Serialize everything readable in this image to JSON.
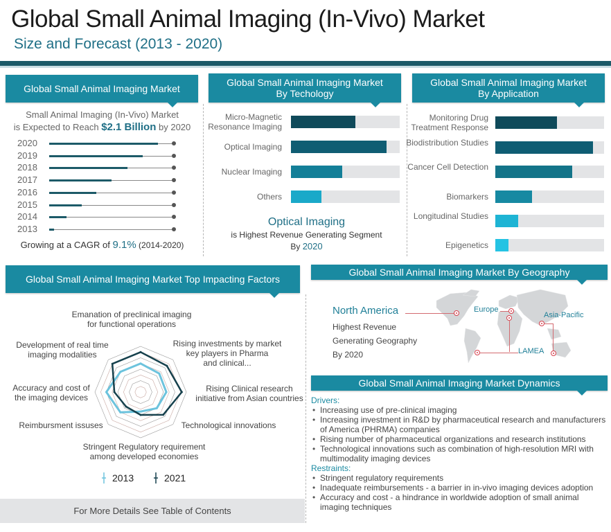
{
  "header": {
    "title": "Global Small Animal Imaging (In-Vivo) Market",
    "subtitle": "Size and Forecast (2013 - 2020)"
  },
  "market_panel": {
    "title": "Global Small Animal Imaging Market",
    "line1": "Small Animal Imaging (In-Vivo) Market",
    "line2_prefix": "is Expected to Reach ",
    "line2_value": "$2.1 Billion",
    "line2_suffix": " by 2020",
    "cagr_prefix": "Growing at a CAGR of ",
    "cagr_value": "9.1%",
    "cagr_period": " (2014-2020)"
  },
  "technology_panel": {
    "title_line1": "Global Small Animal Imaging Market",
    "title_line2": "By Techology",
    "highlight": "Optical Imaging",
    "note_line1": "is Highest Revenue Generating Segment",
    "note_prefix": "By ",
    "note_year": "2020"
  },
  "application_panel": {
    "title_line1": "Global Small Animal Imaging Market",
    "title_line2": "By Application"
  },
  "factors_panel": {
    "title": "Global Small Animal Imaging Market Top Impacting Factors"
  },
  "geography_panel": {
    "title": "Global Small Animal Imaging Market By Geography",
    "highlight": "North America",
    "desc_line1": "Highest Revenue",
    "desc_line2": "Generating Geography",
    "desc_line3": "By 2020",
    "regions": [
      "Europe",
      "Asia-Pacific",
      "LAMEA"
    ]
  },
  "dynamics_panel": {
    "title": "Global Small Animal Imaging Market Dynamics",
    "drivers_label": "Drivers:",
    "drivers": [
      "Increasing use of pre-clinical imaging",
      "Increasing investment in R&D by pharmaceutical research and manufacturers of America (PHRMA) companies",
      "Rising number of pharmaceutical organizations and research institutions",
      "Technological innovations such as combination of high-resolution MRI with multimodality imaging devices"
    ],
    "restraints_label": "Restraints:",
    "restraints": [
      "Stringent regulatory requirements",
      "Inadequate reimbursements - a barrier in in-vivo imaging devices adoption",
      "Accuracy and cost - a hindrance in worldwide adoption of small animal imaging techniques"
    ]
  },
  "footer": {
    "text": "For More Details See Table of Contents"
  },
  "colors": {
    "accent": "#1a8aa1",
    "dark": "#1c5a68",
    "track": "#e3e4e6",
    "pin": "#d6404d"
  },
  "chart_data": [
    {
      "type": "bar",
      "title": "Global Small Animal Imaging Market",
      "orientation": "horizontal",
      "categories": [
        "2020",
        "2019",
        "2018",
        "2017",
        "2016",
        "2015",
        "2014",
        "2013"
      ],
      "values": [
        0.87,
        0.75,
        0.63,
        0.5,
        0.38,
        0.26,
        0.14,
        0.04
      ],
      "unit": "relative share of max",
      "xlim": [
        0,
        1
      ]
    },
    {
      "type": "bar",
      "title": "Global Small Animal Imaging Market By Techology",
      "orientation": "horizontal",
      "categories": [
        "Micro-Magnetic Resonance Imaging",
        "Optical Imaging",
        "Nuclear Imaging",
        "Others"
      ],
      "values": [
        0.59,
        0.88,
        0.47,
        0.28
      ],
      "colors": [
        "#0f4a5a",
        "#0f5d73",
        "#137f98",
        "#1aa9c9"
      ],
      "xlim": [
        0,
        1
      ]
    },
    {
      "type": "bar",
      "title": "Global Small Animal Imaging Market By Application",
      "orientation": "horizontal",
      "categories": [
        "Monitoring Drug Treatment Response",
        "Biodistribution Studies",
        "Cancer Cell Detection",
        "Biomarkers",
        "Longitudinal Studies",
        "Epigenetics"
      ],
      "values": [
        0.57,
        0.9,
        0.71,
        0.34,
        0.21,
        0.12
      ],
      "colors": [
        "#0f4a5a",
        "#0f5d73",
        "#137489",
        "#1689a2",
        "#1eb4d4",
        "#25c3e3"
      ],
      "xlim": [
        0,
        1
      ]
    },
    {
      "type": "radar",
      "title": "Global Small Animal Imaging Market Top Impacting Factors",
      "axes": [
        "Emanation of preclinical imaging for functional operations",
        "Rising investments by market key players in Pharma and clinical...",
        "Rising Clinical research initiative from Asian countries",
        "Technological innovations",
        "Stringent Regulatory requirement among developed economies",
        "Reimbursment issuses",
        "Accuracy and cost of the imaging devices",
        "Development of real time imaging modalities"
      ],
      "axis_labels_lines": [
        [
          "Emanation of preclinical imaging",
          "for functional operations"
        ],
        [
          "Rising investments by market",
          "key players in Pharma",
          "and clinical..."
        ],
        [
          "Rising Clinical research",
          "initiative from Asian countries"
        ],
        [
          "Technological innovations"
        ],
        [
          "Stringent Regulatory requirement",
          "among developed economies"
        ],
        [
          "Reimbursment issuses"
        ],
        [
          "Accuracy and cost of",
          "the imaging devices"
        ],
        [
          "Development of real time",
          "imaging modalities"
        ]
      ],
      "rmax": 8,
      "grid_rings": 8,
      "series": [
        {
          "name": "2013",
          "color": "#6cc3dd",
          "values": [
            5,
            4.6,
            4.5,
            4,
            3.4,
            5,
            6,
            5
          ]
        },
        {
          "name": "2021",
          "color": "#16414d",
          "values": [
            7,
            6.5,
            7.2,
            5.6,
            4,
            3.6,
            4.6,
            7
          ]
        }
      ],
      "legend": "bottom"
    }
  ]
}
